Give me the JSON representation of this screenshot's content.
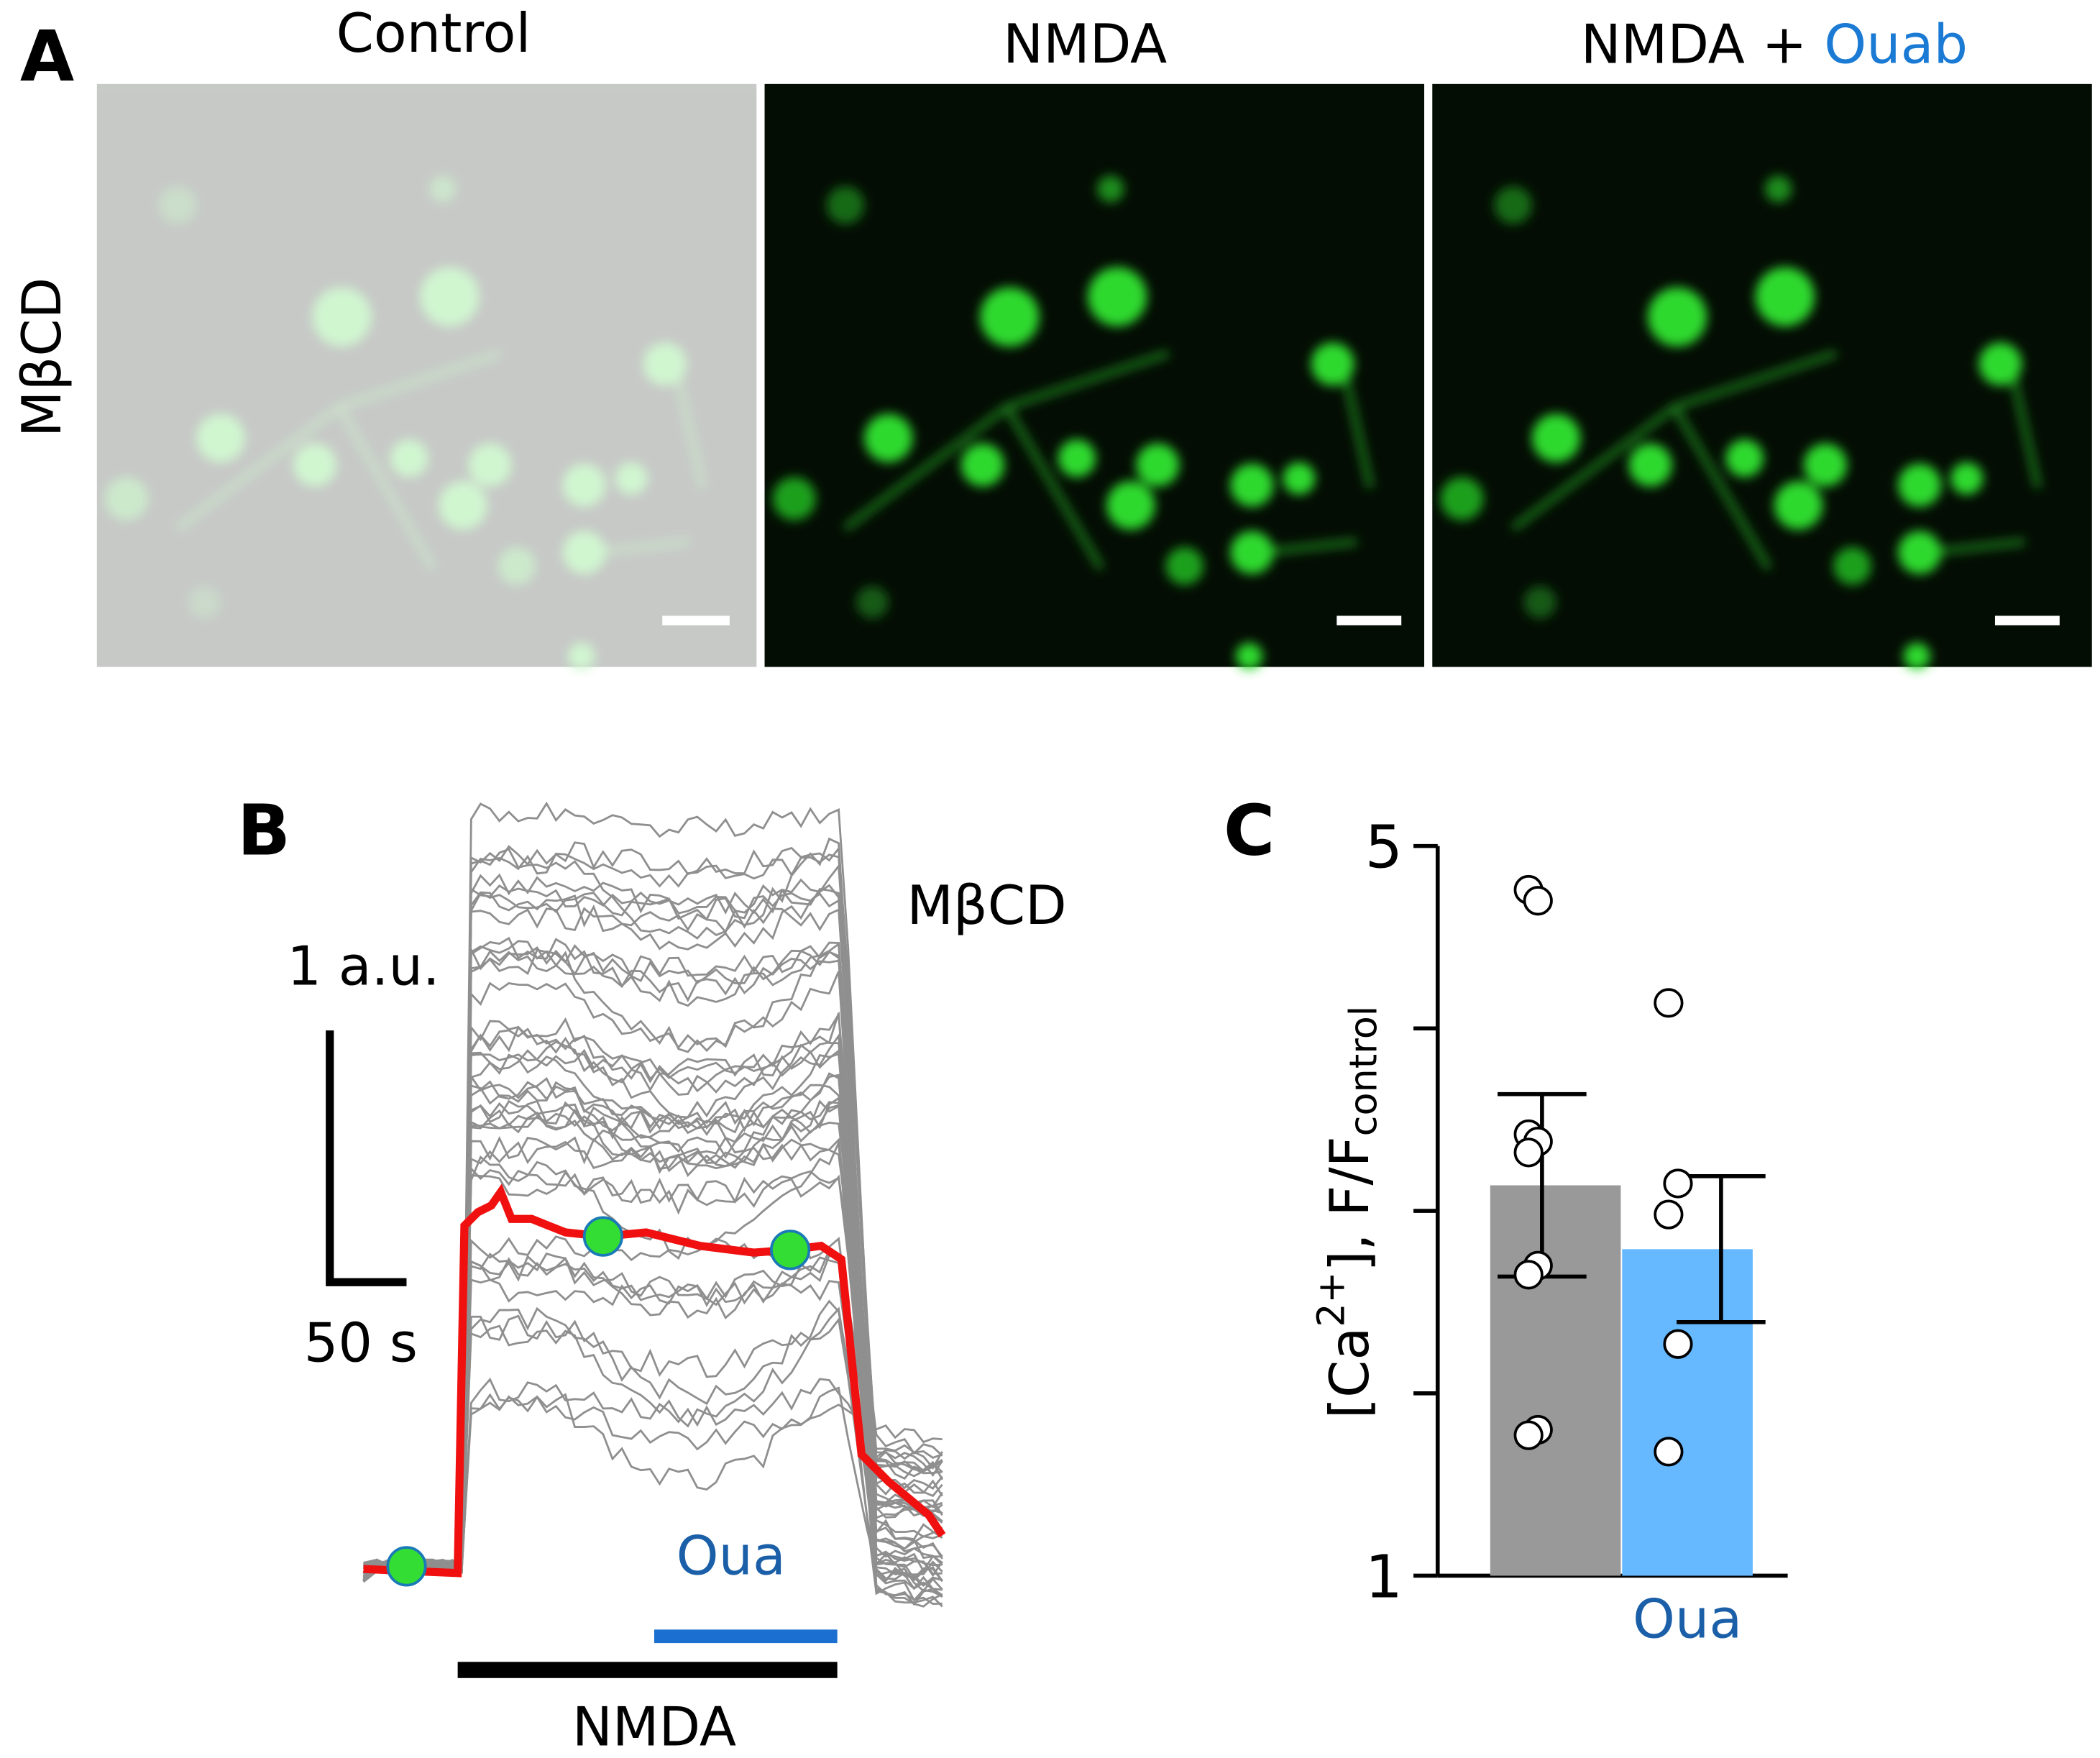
{
  "panel_a": {
    "letter": "A",
    "row_label": "MβCD",
    "titles": [
      "Control",
      "NMDA",
      "NMDA + "
    ],
    "title_highlight": "Ouab"
  },
  "panel_b": {
    "letter": "B",
    "label": "MβCD",
    "scale_y": "1 a.u.",
    "scale_x": "50 s",
    "oua_label": "Oua",
    "nmda_label": "NMDA"
  },
  "chart_data": {
    "type": "bar",
    "letter": "C",
    "y_label": {
      "open": "[Ca",
      "sup": "2+",
      "mid": "], F/F",
      "sub": "control"
    },
    "categories": [
      null,
      "Oua"
    ],
    "values": [
      3.14,
      2.79
    ],
    "errors": [
      0.5,
      0.4
    ],
    "colors": [
      "#999999",
      "#66b8ff"
    ],
    "category_label_color": "#1a5fa8",
    "points": [
      [
        4.76,
        4.7,
        3.42,
        3.38,
        3.32,
        2.7,
        2.65,
        1.8,
        1.77
      ],
      [
        4.14,
        3.15,
        2.98,
        2.27,
        1.68
      ]
    ],
    "ylim": [
      1,
      5
    ],
    "yticks": [
      1,
      5
    ],
    "minor_yticks": [
      2,
      3,
      4
    ]
  }
}
